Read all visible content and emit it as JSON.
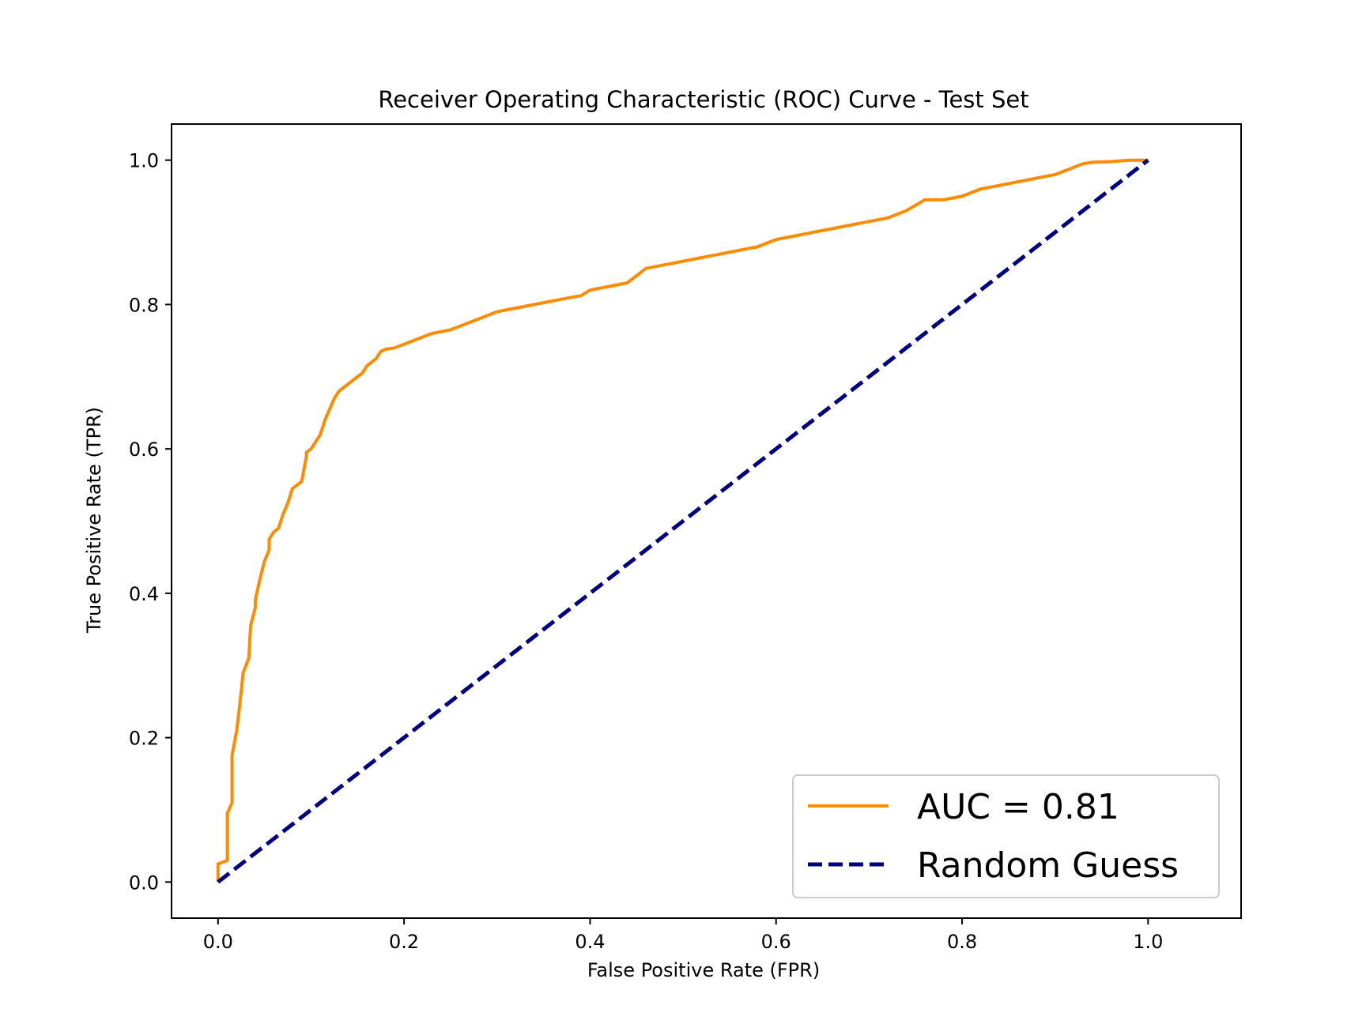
{
  "chart_data": {
    "type": "line",
    "title": "Receiver Operating Characteristic (ROC) Curve - Test Set",
    "xlabel": "False Positive Rate (FPR)",
    "ylabel": "True Positive Rate (TPR)",
    "xlim": [
      -0.05,
      1.1
    ],
    "ylim": [
      -0.05,
      1.05
    ],
    "xticks": [
      0.0,
      0.2,
      0.4,
      0.6,
      0.8,
      1.0
    ],
    "xtick_labels": [
      "0.0",
      "0.2",
      "0.4",
      "0.6",
      "0.8",
      "1.0"
    ],
    "yticks": [
      0.0,
      0.2,
      0.4,
      0.6,
      0.8,
      1.0
    ],
    "ytick_labels": [
      "0.0",
      "0.2",
      "0.4",
      "0.6",
      "0.8",
      "1.0"
    ],
    "grid": false,
    "legend_position": "lower-right",
    "series": [
      {
        "name": "AUC = 0.81",
        "color": "#ff8c00",
        "style": "solid",
        "x": [
          0.0,
          0.0,
          0.01,
          0.01,
          0.015,
          0.015,
          0.02,
          0.022,
          0.025,
          0.027,
          0.03,
          0.033,
          0.035,
          0.04,
          0.04,
          0.045,
          0.05,
          0.055,
          0.055,
          0.06,
          0.065,
          0.07,
          0.075,
          0.08,
          0.085,
          0.09,
          0.095,
          0.095,
          0.1,
          0.105,
          0.11,
          0.115,
          0.12,
          0.125,
          0.13,
          0.14,
          0.15,
          0.155,
          0.16,
          0.165,
          0.17,
          0.175,
          0.18,
          0.19,
          0.2,
          0.21,
          0.22,
          0.23,
          0.25,
          0.26,
          0.27,
          0.28,
          0.3,
          0.32,
          0.34,
          0.36,
          0.38,
          0.39,
          0.4,
          0.42,
          0.44,
          0.45,
          0.46,
          0.48,
          0.5,
          0.52,
          0.54,
          0.56,
          0.58,
          0.6,
          0.62,
          0.64,
          0.66,
          0.68,
          0.7,
          0.72,
          0.74,
          0.76,
          0.78,
          0.8,
          0.81,
          0.82,
          0.84,
          0.86,
          0.88,
          0.9,
          0.91,
          0.92,
          0.93,
          0.94,
          0.96,
          0.98,
          1.0
        ],
        "y": [
          0.0,
          0.025,
          0.03,
          0.095,
          0.11,
          0.175,
          0.21,
          0.23,
          0.265,
          0.29,
          0.3,
          0.31,
          0.355,
          0.38,
          0.39,
          0.42,
          0.445,
          0.46,
          0.475,
          0.485,
          0.49,
          0.51,
          0.525,
          0.545,
          0.55,
          0.555,
          0.59,
          0.595,
          0.6,
          0.61,
          0.62,
          0.64,
          0.655,
          0.67,
          0.68,
          0.69,
          0.7,
          0.705,
          0.715,
          0.72,
          0.725,
          0.735,
          0.738,
          0.74,
          0.745,
          0.75,
          0.755,
          0.76,
          0.765,
          0.77,
          0.775,
          0.78,
          0.79,
          0.795,
          0.8,
          0.805,
          0.81,
          0.812,
          0.82,
          0.825,
          0.83,
          0.84,
          0.85,
          0.855,
          0.86,
          0.865,
          0.87,
          0.875,
          0.88,
          0.89,
          0.895,
          0.9,
          0.905,
          0.91,
          0.915,
          0.92,
          0.93,
          0.945,
          0.945,
          0.95,
          0.955,
          0.96,
          0.965,
          0.97,
          0.975,
          0.98,
          0.985,
          0.99,
          0.995,
          0.997,
          0.998,
          1.0,
          1.0
        ]
      },
      {
        "name": "Random Guess",
        "color": "#000080",
        "style": "dashed",
        "x": [
          0.0,
          1.0
        ],
        "y": [
          0.0,
          1.0
        ]
      }
    ]
  }
}
